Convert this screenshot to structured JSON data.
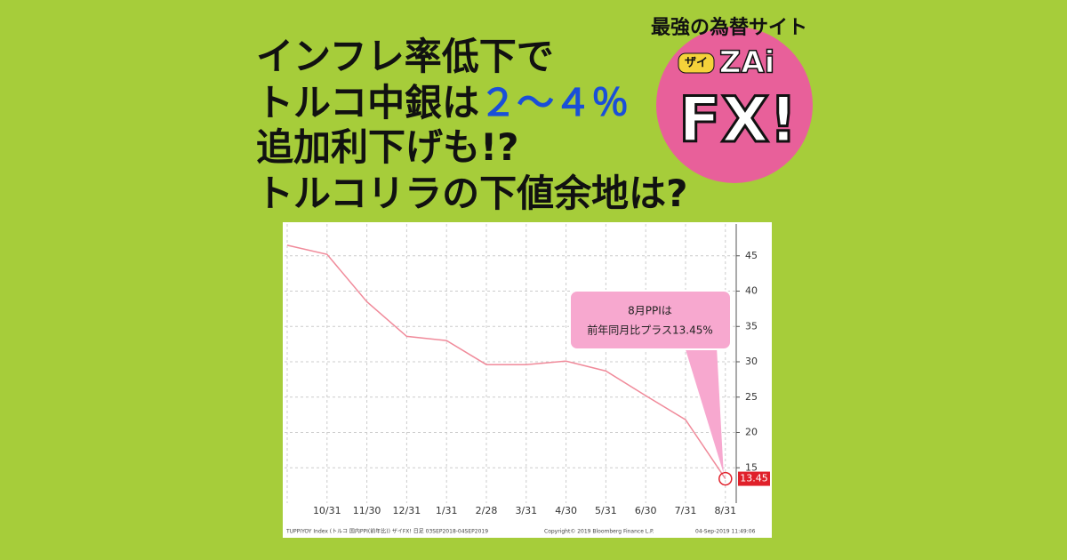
{
  "header": {
    "title_lines": [
      "インフレ率低下で",
      [
        "トルコ中銀は",
        "２～４％"
      ],
      "追加利下げも!?",
      "トルコリラの下値余地は?"
    ]
  },
  "logo": {
    "tagline": "最強の為替サイト",
    "brand_small": "ザイ",
    "brand": "ZAi",
    "brand_big": "FX!"
  },
  "chart_data": {
    "type": "line",
    "categories": [
      null,
      "10/31",
      "11/30",
      "12/31",
      "1/31",
      "2/28",
      "3/31",
      "4/30",
      "5/31",
      "6/30",
      "7/31",
      "8/31"
    ],
    "series": [
      {
        "name": "TUPPIYOY Index",
        "color": "#f08a9a",
        "values": [
          46.5,
          45.2,
          38.5,
          33.6,
          33.0,
          29.6,
          29.6,
          30.1,
          28.7,
          25.2,
          21.8,
          13.45
        ]
      }
    ],
    "ylim": [
      10,
      49.5
    ],
    "yticks": [
      15,
      20,
      25,
      30,
      35,
      40,
      45
    ],
    "grid": true,
    "y_axis_side": "right",
    "annotation": [
      "8月PPIは",
      "前年同月比プラス13.45%"
    ],
    "footer": [
      "TUPPIYOY Index (トルコ 国内PPI(前年比)) ザイFX!  日足 03SEP2018-04SEP2019",
      "Copyright© 2019 Bloomberg Finance L.P.",
      "04-Sep-2019 11:49:06"
    ]
  }
}
